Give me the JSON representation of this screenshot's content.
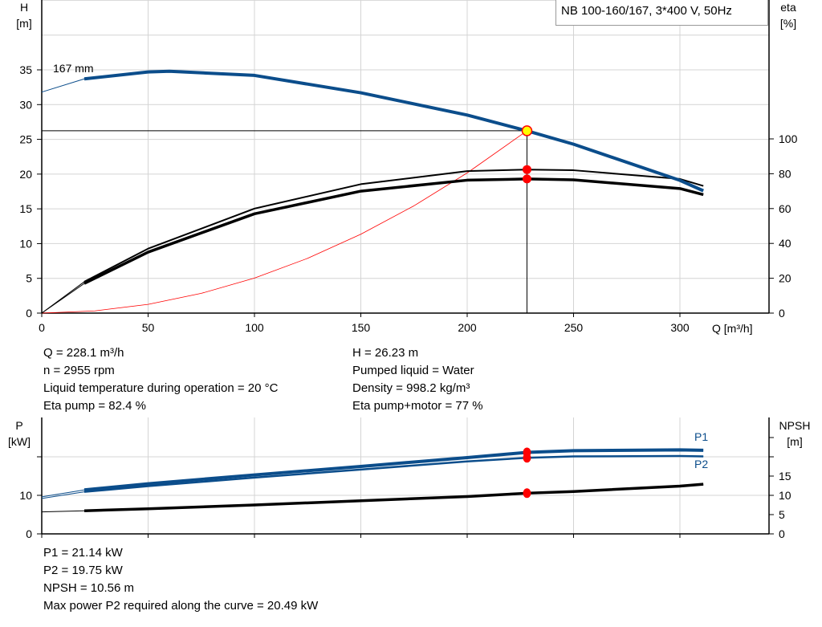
{
  "chart_data": [
    {
      "type": "line",
      "title": "NB 100-160/167, 3*400 V, 50Hz",
      "xlabel": "Q [m³/h]",
      "ylabel": "H\n[m]",
      "ylabel_right": "eta\n[%]",
      "xlim": [
        0,
        342
      ],
      "ylim": [
        0,
        45
      ],
      "ylim_right": [
        0,
        207
      ],
      "grid": true,
      "x_ticks": [
        "0",
        "50",
        "100",
        "150",
        "200",
        "250",
        "300"
      ],
      "y_ticks": [
        "0",
        "5",
        "10",
        "15",
        "20",
        "25",
        "30",
        "35"
      ],
      "y_ticks_right": [
        "0",
        "20",
        "40",
        "60",
        "80",
        "100"
      ],
      "annotations": [
        "167 mm"
      ],
      "duty_point": {
        "Q": 228.1,
        "H": 26.23,
        "eta_pump": 82.4,
        "eta_total": 77
      },
      "series": [
        {
          "id": "head",
          "axis": "left",
          "color": "#0b4d8b",
          "x": [
            0,
            20,
            50,
            60,
            100,
            150,
            200,
            228.1,
            250,
            300,
            311
          ],
          "y": [
            31.8,
            33.7,
            34.7,
            34.8,
            34.2,
            31.7,
            28.5,
            26.23,
            24.3,
            19.1,
            17.6
          ]
        },
        {
          "id": "eta_pump",
          "axis": "right",
          "color": "#000000",
          "x": [
            0,
            20,
            50,
            100,
            150,
            200,
            228.1,
            250,
            300,
            311
          ],
          "y": [
            0,
            18,
            37,
            60,
            74,
            81.5,
            82.4,
            82,
            77,
            73
          ]
        },
        {
          "id": "eta_total",
          "axis": "right",
          "color": "#000000",
          "x": [
            0,
            20,
            50,
            100,
            150,
            200,
            228.1,
            250,
            300,
            311
          ],
          "y": [
            0,
            17,
            35,
            57,
            70,
            76.3,
            77,
            76.5,
            71.5,
            68
          ]
        },
        {
          "id": "system",
          "axis": "left",
          "color": "#ff0000",
          "x": [
            0,
            25,
            50,
            75,
            100,
            125,
            150,
            175,
            200,
            228.1
          ],
          "y": [
            0,
            0.32,
            1.26,
            2.84,
            5.04,
            7.88,
            11.35,
            15.44,
            20.17,
            26.23
          ]
        }
      ]
    },
    {
      "type": "line",
      "ylabel": "P\n[kW]",
      "ylabel_right": "NPSH\n[m]",
      "xlim": [
        0,
        342
      ],
      "ylim": [
        0,
        30
      ],
      "ylim_right": [
        0,
        30
      ],
      "grid": true,
      "y_ticks": [
        "0",
        "10"
      ],
      "y_ticks_right": [
        "0",
        "5",
        "10",
        "15"
      ],
      "duty_point": {
        "Q": 228.1,
        "P1": 21.14,
        "P2": 19.75,
        "NPSH": 10.56
      },
      "series": [
        {
          "id": "P1",
          "name": "P1",
          "axis": "left",
          "color": "#0b4d8b",
          "x": [
            0,
            20,
            50,
            100,
            150,
            200,
            228.1,
            250,
            300,
            311
          ],
          "y": [
            9.6,
            11.4,
            13.0,
            15.3,
            17.5,
            19.8,
            21.14,
            21.6,
            21.8,
            21.7
          ]
        },
        {
          "id": "P2",
          "name": "P2",
          "axis": "left",
          "color": "#0b4d8b",
          "x": [
            0,
            20,
            50,
            100,
            150,
            200,
            228.1,
            250,
            300,
            311
          ],
          "y": [
            9.2,
            10.9,
            12.4,
            14.6,
            16.7,
            18.8,
            19.75,
            20.1,
            20.2,
            20.1
          ]
        },
        {
          "id": "NPSH",
          "axis": "right",
          "color": "#000000",
          "x": [
            0,
            20,
            50,
            100,
            150,
            200,
            228.1,
            250,
            300,
            311
          ],
          "y": [
            5.7,
            6.0,
            6.5,
            7.5,
            8.6,
            9.7,
            10.56,
            11.0,
            12.4,
            12.9
          ]
        }
      ]
    }
  ],
  "info_top": {
    "left": [
      "Q = 228.1 m³/h",
      "n = 2955 rpm",
      "Liquid temperature during operation = 20 °C",
      "Eta pump = 82.4 %"
    ],
    "right": [
      "H = 26.23 m",
      "Pumped liquid = Water",
      "Density = 998.2 kg/m³",
      "Eta pump+motor = 77 %"
    ]
  },
  "info_bottom": [
    "P1 = 21.14 kW",
    "P2 = 19.75 kW",
    "NPSH = 10.56 m",
    "Max power P2 required along the curve = 20.49 kW"
  ]
}
